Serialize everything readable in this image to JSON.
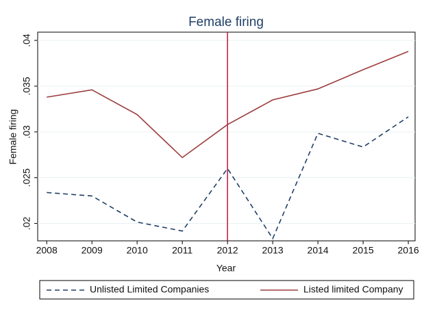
{
  "chart_data": {
    "type": "line",
    "title": "Female firing",
    "xlabel": "Year",
    "ylabel": "Female firing",
    "x": [
      2008,
      2009,
      2010,
      2011,
      2012,
      2013,
      2014,
      2015,
      2016
    ],
    "series": [
      {
        "name": "Unlisted Limited Companies",
        "color": "#1f3f66",
        "linestyle": "dashed",
        "values": [
          0.02338,
          0.023,
          0.02015,
          0.01917,
          0.026,
          0.01835,
          0.02985,
          0.02835,
          0.03165
        ]
      },
      {
        "name": "Listed limited Company",
        "color": "#9c3b3b",
        "linestyle": "solid",
        "values": [
          0.0338,
          0.0346,
          0.0319,
          0.0272,
          0.0308,
          0.0335,
          0.0347,
          0.0368,
          0.0388
        ]
      }
    ],
    "xlim": [
      2007.8,
      2016.15
    ],
    "xticks": [
      2008,
      2009,
      2010,
      2011,
      2012,
      2013,
      2014,
      2015,
      2016
    ],
    "ylim": [
      0.0181,
      0.0409
    ],
    "yticks": [
      {
        "value": 0.02,
        "label": ".02"
      },
      {
        "value": 0.025,
        "label": ".025"
      },
      {
        "value": 0.03,
        "label": ".03"
      },
      {
        "value": 0.035,
        "label": ".035"
      },
      {
        "value": 0.04,
        "label": ".04"
      }
    ],
    "grid": true,
    "vline": 2012,
    "vline_color": "#c0143c",
    "legend": "bottom"
  }
}
